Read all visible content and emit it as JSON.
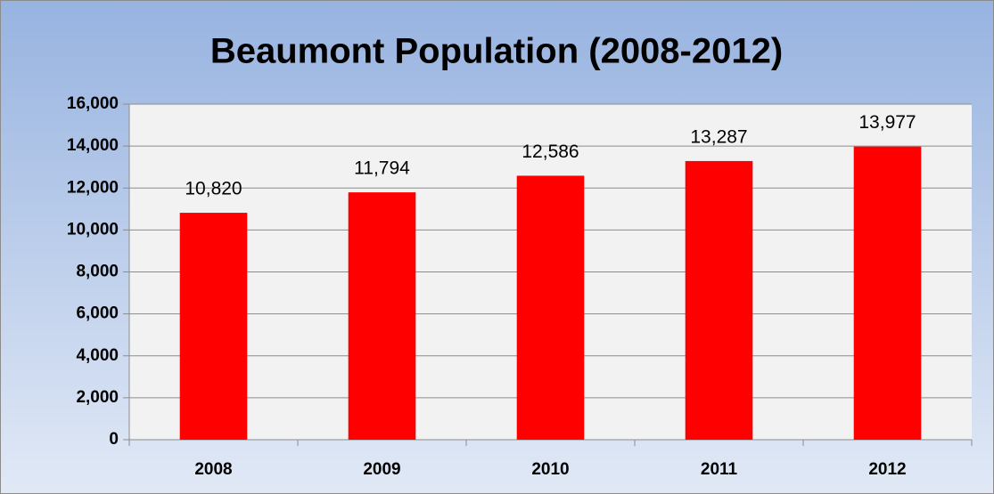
{
  "chart_data": {
    "type": "bar",
    "title": "Beaumont Population (2008-2012)",
    "categories": [
      "2008",
      "2009",
      "2010",
      "2011",
      "2012"
    ],
    "values": [
      10820,
      11794,
      12586,
      13287,
      13977
    ],
    "value_labels": [
      "10,820",
      "11,794",
      "12,586",
      "13,287",
      "13,977"
    ],
    "color": "#ff0000",
    "ylim": [
      0,
      16000
    ],
    "yticks": [
      0,
      {
        "value": 2000,
        "label": "2,000"
      },
      {
        "value": 4000,
        "label": "4,000"
      },
      {
        "value": 6000,
        "label": "6,000"
      },
      {
        "value": 8000,
        "label": "8,000"
      },
      {
        "value": 10000,
        "label": "10,000"
      },
      {
        "value": 12000,
        "label": "12,000"
      },
      {
        "value": 14000,
        "label": "14,000"
      },
      {
        "value": 16000,
        "label": "16,000"
      }
    ],
    "grid": true
  }
}
